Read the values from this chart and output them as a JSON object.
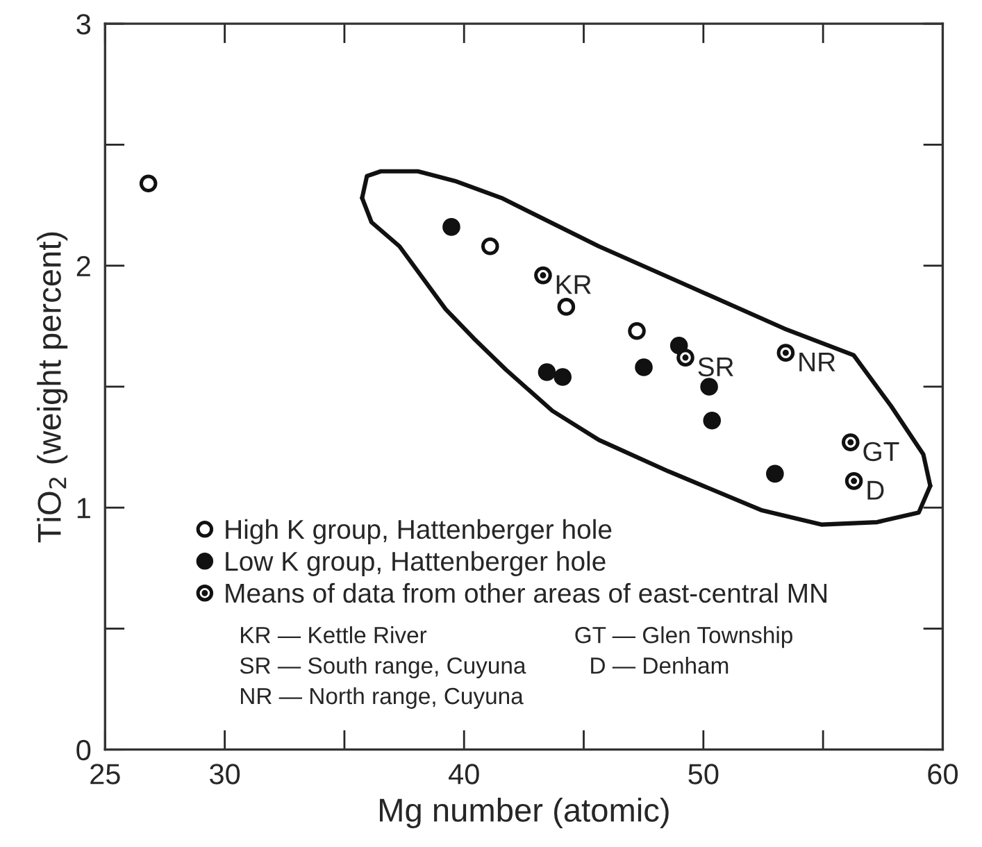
{
  "chart_data": {
    "type": "scatter",
    "xlabel": "Mg number (atomic)",
    "ylabel": "TiO$_{2}$ (weight percent)",
    "xlim": [
      25,
      60
    ],
    "ylim": [
      0,
      3
    ],
    "xticks": [
      25,
      30,
      {
        "value": 35,
        "label": null
      },
      40,
      {
        "value": 45,
        "label": null
      },
      50,
      {
        "value": 55,
        "label": null
      },
      60
    ],
    "yticks": [
      0,
      {
        "value": 0.5,
        "label": null
      },
      1,
      {
        "value": 1.5,
        "label": null
      },
      2,
      {
        "value": 2.5,
        "label": null
      },
      3
    ],
    "grid": false,
    "legend": "bottom left",
    "series": [
      {
        "name": "High K group, Hattenberger hole",
        "marker": "circle",
        "color": "#ffffff",
        "x": [
          26.81,
          41.09,
          44.27,
          47.22
        ],
        "values": [
          2.34,
          2.08,
          1.83,
          1.73
        ]
      },
      {
        "name": "Low K group, Hattenberger hole",
        "marker": "circle",
        "color": "#111111",
        "x": [
          39.47,
          43.46,
          44.12,
          47.51,
          48.98,
          50.24,
          50.36,
          52.99
        ],
        "values": [
          2.16,
          1.56,
          1.54,
          1.58,
          1.67,
          1.5,
          1.36,
          1.14
        ]
      },
      {
        "name": "Means of data from other areas of east-central MN",
        "marker": "circle",
        "color": "#ffffff",
        "x": [
          43.3,
          49.25,
          53.44,
          56.15,
          56.29
        ],
        "values": [
          1.96,
          1.62,
          1.64,
          1.27,
          1.11
        ]
      },
      {
        "type": "line",
        "color": "#111111",
        "line_style": "solid",
        "marker": "none",
        "x": [
          35.74,
          35.94,
          36.52,
          38.07,
          39.62,
          41.56,
          45.63,
          49.51,
          53.38,
          56.28,
          57.84,
          59.19,
          59.48
        ],
        "values": [
          2.28,
          2.37,
          2.39,
          2.39,
          2.35,
          2.28,
          2.08,
          1.91,
          1.74,
          1.63,
          1.42,
          1.22,
          1.09
        ]
      },
      {
        "type": "line",
        "color": "#111111",
        "line_style": "solid",
        "marker": "none",
        "x": [
          35.74,
          36.13,
          37.3,
          39.23,
          40.4,
          41.75,
          43.69,
          45.63,
          48.54,
          52.41,
          54.93,
          57.26,
          59.0,
          59.48
        ],
        "values": [
          2.28,
          2.18,
          2.08,
          1.82,
          1.7,
          1.57,
          1.4,
          1.28,
          1.15,
          0.99,
          0.93,
          0.94,
          0.98,
          1.09
        ]
      }
    ],
    "annotations": [
      {
        "text": "KR",
        "x": 43.3,
        "y": 1.96
      },
      {
        "text": "SR",
        "x": 49.25,
        "y": 1.62
      },
      {
        "text": "NR",
        "x": 53.44,
        "y": 1.64
      },
      {
        "text": "GT",
        "x": 56.15,
        "y": 1.27
      },
      {
        "text": "D",
        "x": 56.29,
        "y": 1.11
      },
      "KR — Kettle River",
      "SR — South range, Cuyuna",
      "NR — North range, Cuyuna",
      "GT — Glen Township",
      "D — Denham"
    ]
  }
}
